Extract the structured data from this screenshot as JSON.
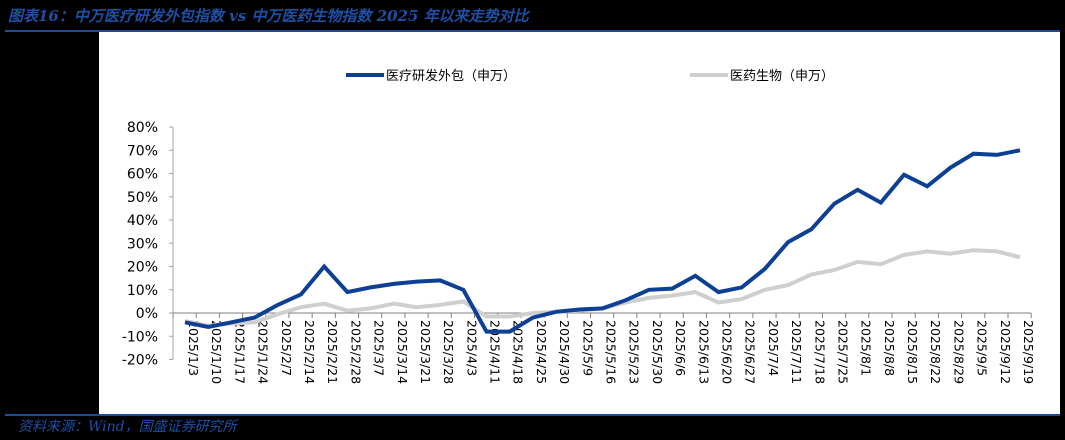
{
  "header": {
    "title": "图表16：中万医疗研发外包指数 vs 中万医药生物指数 2025 年以来走势对比"
  },
  "footer": {
    "source": "资料来源：Wind，国盛证券研究所"
  },
  "colors": {
    "series_1": "#0d3f94",
    "series_2": "#cfcfcf",
    "accent": "#1e4fa3",
    "axis": "#a6a6a6"
  },
  "chart_data": {
    "type": "line",
    "title": "图表16：中万医疗研发外包指数 vs 中万医药生物指数 2025 年以来走势对比",
    "xlabel": "",
    "ylabel": "",
    "ylim": [
      -0.2,
      0.8
    ],
    "yticks": [
      "80%",
      "70%",
      "60%",
      "50%",
      "40%",
      "30%",
      "20%",
      "10%",
      "0%",
      "-10%",
      "-20%"
    ],
    "grid": false,
    "legend_position": "top",
    "categories": [
      "2025/1/3",
      "2025/1/10",
      "2025/1/17",
      "2025/1/24",
      "2025/2/7",
      "2025/2/14",
      "2025/2/21",
      "2025/2/28",
      "2025/3/7",
      "2025/3/14",
      "2025/3/21",
      "2025/3/28",
      "2025/4/3",
      "2025/4/11",
      "2025/4/18",
      "2025/4/25",
      "2025/4/30",
      "2025/5/9",
      "2025/5/16",
      "2025/5/23",
      "2025/5/30",
      "2025/6/6",
      "2025/6/13",
      "2025/6/20",
      "2025/6/27",
      "2025/7/4",
      "2025/7/11",
      "2025/7/18",
      "2025/7/25",
      "2025/8/1",
      "2025/8/8",
      "2025/8/15",
      "2025/8/22",
      "2025/8/29",
      "2025/9/5",
      "2025/9/12",
      "2025/9/19"
    ],
    "series": [
      {
        "name": "医疗研发外包（申万）",
        "values": [
          -0.04,
          -0.06,
          -0.04,
          -0.02,
          0.035,
          0.08,
          0.2,
          0.09,
          0.11,
          0.125,
          0.135,
          0.14,
          0.1,
          -0.08,
          -0.08,
          -0.02,
          0.005,
          0.015,
          0.02,
          0.055,
          0.1,
          0.105,
          0.16,
          0.09,
          0.11,
          0.19,
          0.305,
          0.36,
          0.47,
          0.53,
          0.475,
          0.595,
          0.545,
          0.625,
          0.685,
          0.68,
          0.7
        ]
      },
      {
        "name": "医药生物（申万）",
        "values": [
          -0.035,
          -0.055,
          -0.045,
          -0.04,
          -0.005,
          0.025,
          0.04,
          0.01,
          0.02,
          0.04,
          0.025,
          0.035,
          0.05,
          -0.015,
          -0.015,
          0.0,
          0.005,
          0.01,
          0.02,
          0.045,
          0.065,
          0.075,
          0.09,
          0.045,
          0.06,
          0.1,
          0.12,
          0.165,
          0.185,
          0.22,
          0.21,
          0.25,
          0.265,
          0.255,
          0.27,
          0.265,
          0.24
        ]
      }
    ]
  }
}
